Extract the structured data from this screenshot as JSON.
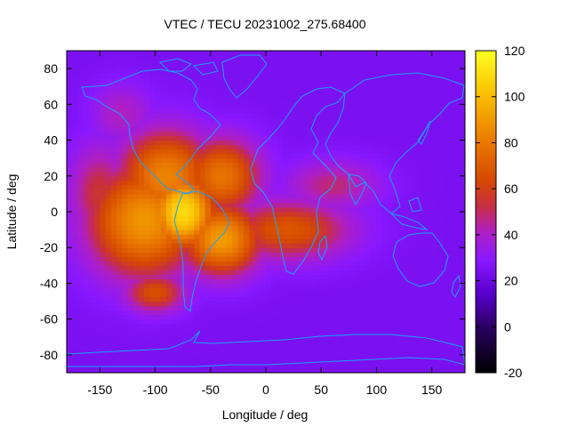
{
  "chart_data": {
    "type": "heatmap",
    "title": "VTEC / TECU 20231002_275.68400",
    "xlabel": "Longitude / deg",
    "ylabel": "Latitude / deg",
    "xlim": [
      -180,
      180
    ],
    "ylim": [
      -90,
      90
    ],
    "xticks": [
      -150,
      -100,
      -50,
      0,
      50,
      100,
      150
    ],
    "yticks": [
      -80,
      -60,
      -40,
      -20,
      0,
      20,
      40,
      60,
      80
    ],
    "colorbar": {
      "range": [
        -20,
        120
      ],
      "ticks": [
        -20,
        0,
        20,
        40,
        60,
        80,
        100,
        120
      ],
      "palette": [
        "#000000",
        "#3b00a0",
        "#7a10ff",
        "#a020f0",
        "#d03a00",
        "#e86a00",
        "#f5a500",
        "#ffe000",
        "#ffff40"
      ]
    },
    "blobs": [
      {
        "lon": -75,
        "lat": 0,
        "value": 105,
        "spread_lon": 20,
        "spread_lat": 14
      },
      {
        "lon": -110,
        "lat": -5,
        "value": 80,
        "spread_lon": 35,
        "spread_lat": 22
      },
      {
        "lon": -90,
        "lat": 20,
        "value": 75,
        "spread_lon": 30,
        "spread_lat": 18
      },
      {
        "lon": -40,
        "lat": 20,
        "value": 70,
        "spread_lon": 25,
        "spread_lat": 15
      },
      {
        "lon": -40,
        "lat": -15,
        "value": 82,
        "spread_lon": 25,
        "spread_lat": 14
      },
      {
        "lon": 20,
        "lat": -10,
        "value": 60,
        "spread_lon": 40,
        "spread_lat": 12
      },
      {
        "lon": 60,
        "lat": 15,
        "value": 45,
        "spread_lon": 30,
        "spread_lat": 10
      },
      {
        "lon": -100,
        "lat": -45,
        "value": 58,
        "spread_lon": 20,
        "spread_lat": 8
      },
      {
        "lon": -150,
        "lat": 10,
        "value": 50,
        "spread_lon": 20,
        "spread_lat": 20
      },
      {
        "lon": -130,
        "lat": 55,
        "value": 40,
        "spread_lon": 20,
        "spread_lat": 12
      }
    ],
    "background_value": 24
  }
}
